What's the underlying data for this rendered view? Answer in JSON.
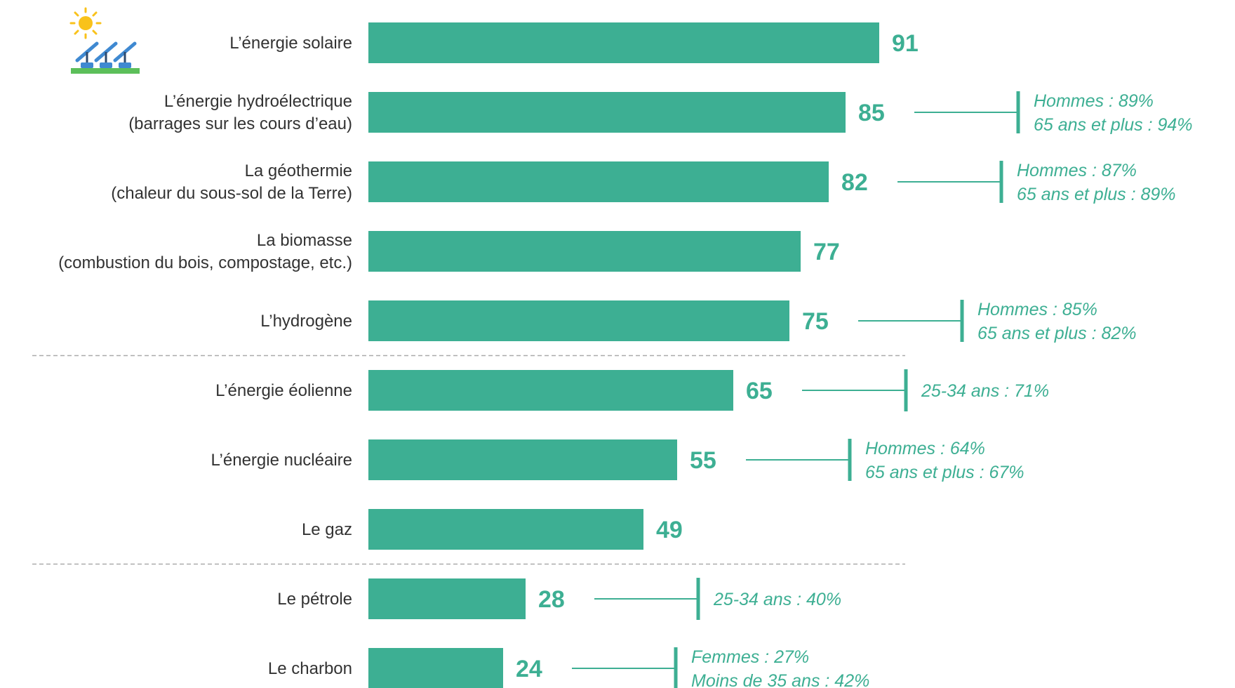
{
  "colors": {
    "bar": "#3daf93",
    "text": "#333333",
    "separator": "#aaaaaa"
  },
  "icon": {
    "name": "solar-panel-icon"
  },
  "chart_data": {
    "type": "bar",
    "orientation": "horizontal",
    "categories": [
      [
        "L’énergie solaire"
      ],
      [
        "L’énergie hydroélectrique",
        "(barrages sur les cours d’eau)"
      ],
      [
        "La géothermie",
        "(chaleur du sous-sol de la Terre)"
      ],
      [
        "La biomasse",
        "(combustion du bois, compostage, etc.)"
      ],
      [
        "L’hydrogène"
      ],
      [
        "L’énergie éolienne"
      ],
      [
        "L’énergie nucléaire"
      ],
      [
        "Le gaz"
      ],
      [
        "Le pétrole"
      ],
      [
        "Le charbon"
      ]
    ],
    "values": [
      91,
      85,
      82,
      77,
      75,
      65,
      55,
      49,
      28,
      24
    ],
    "separators_after": [
      4,
      7
    ],
    "annotations": [
      [],
      [
        "Hommes : 89%",
        "65 ans et plus : 94%"
      ],
      [
        "Hommes : 87%",
        "65 ans et plus : 89%"
      ],
      [],
      [
        "Hommes : 85%",
        "65 ans et plus : 82%"
      ],
      [
        "25-34 ans : 71%"
      ],
      [
        "Hommes : 64%",
        "65 ans et plus : 67%"
      ],
      [],
      [
        "25-34 ans : 40%"
      ],
      [
        "Femmes : 27%",
        "Moins de 35 ans : 42%"
      ]
    ],
    "xlim": [
      0,
      100
    ],
    "grid": false,
    "title": "",
    "xlabel": "",
    "ylabel": ""
  }
}
